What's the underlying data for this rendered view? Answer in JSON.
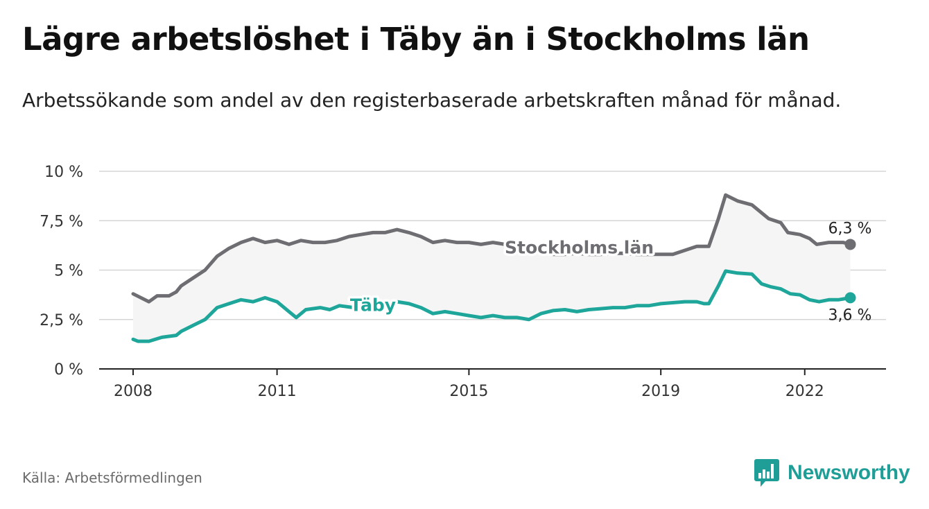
{
  "title": "Lägre arbetslöshet i Täby än i Stockholms län",
  "subtitle": "Arbetssökande som andel av den registerbaserade arbetskraften månad för månad.",
  "source": "Källa: Arbetsförmedlingen",
  "brand": {
    "name": "Newsworthy",
    "icon": "bar-chart-speech-bubble-icon",
    "color": "#1f9e97"
  },
  "chart_data": {
    "type": "line",
    "title": "Lägre arbetslöshet i Täby än i Stockholms län",
    "xlabel": "",
    "ylabel": "",
    "xlim": [
      2007.9,
      2023.5
    ],
    "ylim": [
      0,
      10
    ],
    "grid": true,
    "y_ticks": [
      {
        "value": 0,
        "label": "0 %"
      },
      {
        "value": 2.5,
        "label": "2,5 %"
      },
      {
        "value": 5,
        "label": "5 %"
      },
      {
        "value": 7.5,
        "label": "7,5 %"
      },
      {
        "value": 10,
        "label": "10 %"
      }
    ],
    "x_ticks": [
      {
        "value": 2008,
        "label": "2008"
      },
      {
        "value": 2011,
        "label": "2011"
      },
      {
        "value": 2015,
        "label": "2015"
      },
      {
        "value": 2019,
        "label": "2019"
      },
      {
        "value": 2022,
        "label": "2022"
      }
    ],
    "series": [
      {
        "name": "Stockholms län",
        "color": "#6e6d72",
        "end_label": "6,3 %",
        "points": [
          [
            2008.0,
            3.8
          ],
          [
            2008.33,
            3.4
          ],
          [
            2008.5,
            3.7
          ],
          [
            2008.75,
            3.7
          ],
          [
            2008.9,
            3.9
          ],
          [
            2009.0,
            4.2
          ],
          [
            2009.25,
            4.6
          ],
          [
            2009.5,
            5.0
          ],
          [
            2009.75,
            5.7
          ],
          [
            2010.0,
            6.1
          ],
          [
            2010.25,
            6.4
          ],
          [
            2010.5,
            6.6
          ],
          [
            2010.75,
            6.4
          ],
          [
            2011.0,
            6.5
          ],
          [
            2011.25,
            6.3
          ],
          [
            2011.5,
            6.5
          ],
          [
            2011.75,
            6.4
          ],
          [
            2012.0,
            6.4
          ],
          [
            2012.25,
            6.5
          ],
          [
            2012.5,
            6.7
          ],
          [
            2012.75,
            6.8
          ],
          [
            2013.0,
            6.9
          ],
          [
            2013.25,
            6.9
          ],
          [
            2013.5,
            7.05
          ],
          [
            2013.75,
            6.9
          ],
          [
            2014.0,
            6.7
          ],
          [
            2014.25,
            6.4
          ],
          [
            2014.5,
            6.5
          ],
          [
            2014.75,
            6.4
          ],
          [
            2015.0,
            6.4
          ],
          [
            2015.25,
            6.3
          ],
          [
            2015.5,
            6.4
          ],
          [
            2015.75,
            6.3
          ],
          [
            2016.0,
            6.2
          ],
          [
            2016.25,
            6.0
          ],
          [
            2016.5,
            5.9
          ],
          [
            2016.75,
            5.8
          ],
          [
            2017.0,
            5.8
          ],
          [
            2017.25,
            5.85
          ],
          [
            2017.5,
            5.8
          ],
          [
            2017.75,
            5.8
          ],
          [
            2018.0,
            5.85
          ],
          [
            2018.25,
            5.85
          ],
          [
            2018.5,
            5.8
          ],
          [
            2018.75,
            5.8
          ],
          [
            2019.0,
            5.8
          ],
          [
            2019.25,
            5.8
          ],
          [
            2019.5,
            6.0
          ],
          [
            2019.75,
            6.2
          ],
          [
            2020.0,
            6.2
          ],
          [
            2020.2,
            7.6
          ],
          [
            2020.35,
            8.8
          ],
          [
            2020.6,
            8.5
          ],
          [
            2020.9,
            8.3
          ],
          [
            2021.25,
            7.6
          ],
          [
            2021.5,
            7.4
          ],
          [
            2021.65,
            6.9
          ],
          [
            2021.9,
            6.8
          ],
          [
            2022.1,
            6.6
          ],
          [
            2022.25,
            6.3
          ],
          [
            2022.5,
            6.4
          ],
          [
            2022.8,
            6.4
          ],
          [
            2022.95,
            6.3
          ]
        ]
      },
      {
        "name": "Täby",
        "color": "#1fa69b",
        "end_label": "3,6 %",
        "points": [
          [
            2008.0,
            1.5
          ],
          [
            2008.1,
            1.4
          ],
          [
            2008.33,
            1.4
          ],
          [
            2008.6,
            1.6
          ],
          [
            2008.9,
            1.7
          ],
          [
            2009.0,
            1.9
          ],
          [
            2009.25,
            2.2
          ],
          [
            2009.5,
            2.5
          ],
          [
            2009.75,
            3.1
          ],
          [
            2010.0,
            3.3
          ],
          [
            2010.25,
            3.5
          ],
          [
            2010.5,
            3.4
          ],
          [
            2010.75,
            3.6
          ],
          [
            2011.0,
            3.4
          ],
          [
            2011.25,
            2.9
          ],
          [
            2011.4,
            2.6
          ],
          [
            2011.6,
            3.0
          ],
          [
            2011.9,
            3.1
          ],
          [
            2012.1,
            3.0
          ],
          [
            2012.3,
            3.2
          ],
          [
            2012.6,
            3.1
          ],
          [
            2012.75,
            3.2
          ],
          [
            2013.0,
            3.5
          ],
          [
            2013.25,
            3.3
          ],
          [
            2013.5,
            3.4
          ],
          [
            2013.75,
            3.3
          ],
          [
            2014.0,
            3.1
          ],
          [
            2014.25,
            2.8
          ],
          [
            2014.5,
            2.9
          ],
          [
            2014.75,
            2.8
          ],
          [
            2015.0,
            2.7
          ],
          [
            2015.25,
            2.6
          ],
          [
            2015.5,
            2.7
          ],
          [
            2015.75,
            2.6
          ],
          [
            2016.0,
            2.6
          ],
          [
            2016.25,
            2.5
          ],
          [
            2016.5,
            2.8
          ],
          [
            2016.75,
            2.95
          ],
          [
            2017.0,
            3.0
          ],
          [
            2017.25,
            2.9
          ],
          [
            2017.5,
            3.0
          ],
          [
            2017.75,
            3.05
          ],
          [
            2018.0,
            3.1
          ],
          [
            2018.25,
            3.1
          ],
          [
            2018.5,
            3.2
          ],
          [
            2018.75,
            3.2
          ],
          [
            2019.0,
            3.3
          ],
          [
            2019.25,
            3.35
          ],
          [
            2019.5,
            3.4
          ],
          [
            2019.75,
            3.4
          ],
          [
            2019.9,
            3.3
          ],
          [
            2020.0,
            3.3
          ],
          [
            2020.2,
            4.2
          ],
          [
            2020.35,
            4.95
          ],
          [
            2020.6,
            4.85
          ],
          [
            2020.9,
            4.8
          ],
          [
            2021.1,
            4.3
          ],
          [
            2021.3,
            4.15
          ],
          [
            2021.5,
            4.05
          ],
          [
            2021.7,
            3.8
          ],
          [
            2021.9,
            3.75
          ],
          [
            2022.1,
            3.5
          ],
          [
            2022.3,
            3.4
          ],
          [
            2022.5,
            3.5
          ],
          [
            2022.7,
            3.5
          ],
          [
            2022.95,
            3.6
          ]
        ]
      }
    ],
    "fill_between": {
      "series": [
        "Stockholms län",
        "Täby"
      ],
      "color": "#f5f5f5"
    },
    "annotations": [
      {
        "text": "Stockholms län",
        "series": "Stockholms län",
        "x": 2017.3,
        "y": 6.15
      },
      {
        "text": "Täby",
        "series": "Täby",
        "x": 2013.0,
        "y": 3.25
      }
    ]
  }
}
